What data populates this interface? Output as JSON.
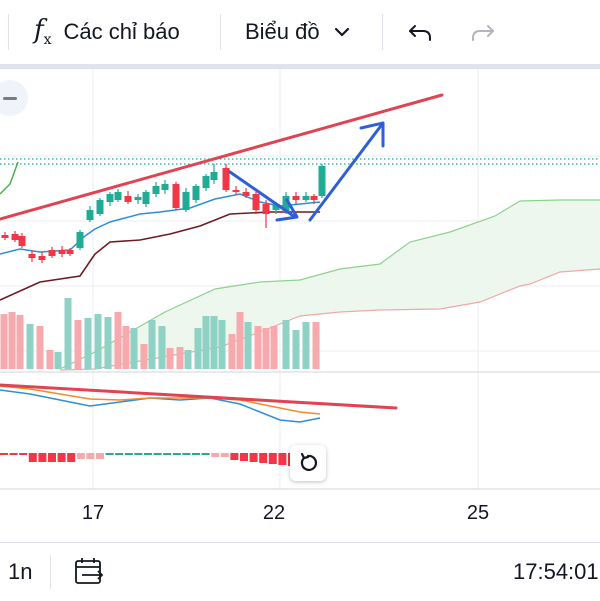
{
  "toolbar": {
    "indicators_label": "Các chỉ báo",
    "indicators_icon": "fx-icon",
    "chart_type_label": "Biểu đồ",
    "chart_type_icon": "chevron-down-icon",
    "undo_icon": "undo-icon",
    "redo_icon": "redo-icon"
  },
  "chart": {
    "x_axis_labels": [
      "17",
      "22",
      "25"
    ],
    "colors": {
      "up": "#22ab94",
      "down": "#f23645",
      "volume_up": "#8fd1c4",
      "volume_down": "#f7a9ae",
      "trendline": "#e04453",
      "arrow": "#2e5fd8",
      "base_line": "#6e1c22",
      "conversion_line": "#2e8fd8",
      "cloud_span_a": "#8fd18f",
      "cloud_span_b": "#f0a9a9",
      "cloud_fill": "#e8f5e9",
      "macd_line": "#2e8fd8",
      "signal_line": "#f28c28"
    },
    "collapse_icon": "minus-icon",
    "reset_icon": "reset-icon"
  },
  "bottom_bar": {
    "interval_label": "1n",
    "goto_date_icon": "calendar-goto-icon",
    "time": "17:54:01"
  }
}
